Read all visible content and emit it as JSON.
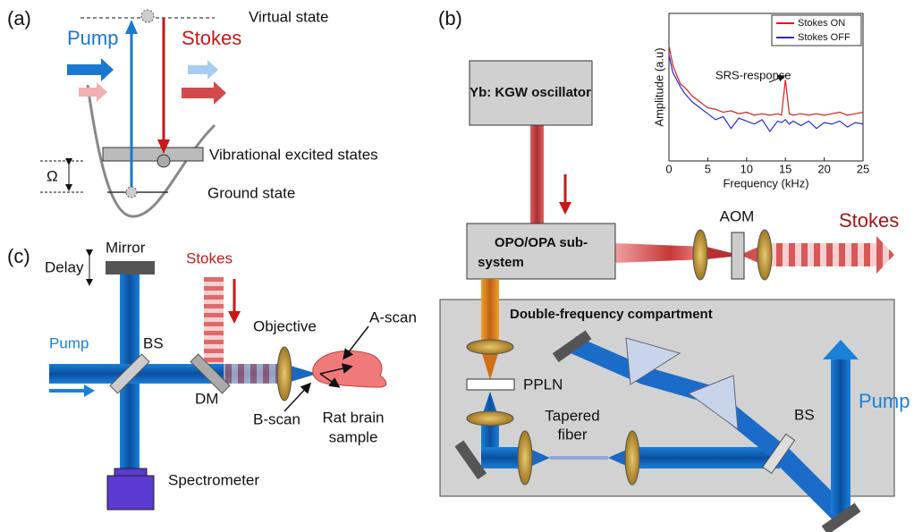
{
  "panels": {
    "a": {
      "label": "(a)",
      "virtual_state": "Virtual state",
      "pump": "Pump",
      "stokes": "Stokes",
      "vibrational": "Vibrational excited states",
      "ground": "Ground state",
      "omega": "Ω"
    },
    "b": {
      "label": "(b)",
      "oscillator": "Yb: KGW oscillator",
      "opo": [
        "OPO/OPA sub-",
        "system"
      ],
      "aom": "AOM",
      "stokes": "Stokes",
      "compartment": "Double-frequency compartment",
      "ppln": "PPLN",
      "tapered": [
        "Tapered",
        "fiber"
      ],
      "bs": "BS",
      "pump": "Pump"
    },
    "c": {
      "label": "(c)",
      "mirror": "Mirror",
      "delay": "Delay",
      "stokes": "Stokes",
      "pump": "Pump",
      "bs": "BS",
      "dm": "DM",
      "objective": "Objective",
      "ascan": "A-scan",
      "bscan": "B-scan",
      "sample": [
        "Rat brain",
        "sample"
      ],
      "spectrometer": "Spectrometer"
    }
  },
  "chart_data": {
    "type": "line",
    "xlabel": "Frequency  (kHz)",
    "ylabel": "Amplitude (a.u)",
    "annotation": "SRS-response",
    "x": [
      0,
      0.5,
      1,
      1.5,
      2,
      3,
      4,
      5,
      6,
      7,
      8,
      9,
      10,
      11,
      12,
      13,
      14,
      14.5,
      15,
      15.5,
      16,
      17,
      18,
      19,
      20,
      21,
      22,
      23,
      24,
      25
    ],
    "series": [
      {
        "name": "Stokes ON",
        "color": "#d42020",
        "values": [
          0.78,
          0.65,
          0.58,
          0.52,
          0.5,
          0.44,
          0.4,
          0.36,
          0.35,
          0.33,
          0.34,
          0.32,
          0.33,
          0.31,
          0.32,
          0.31,
          0.32,
          0.31,
          0.55,
          0.32,
          0.31,
          0.32,
          0.31,
          0.32,
          0.31,
          0.32,
          0.33,
          0.31,
          0.32,
          0.33
        ]
      },
      {
        "name": "Stokes OFF",
        "color": "#2a2ad8",
        "values": [
          0.72,
          0.6,
          0.55,
          0.5,
          0.46,
          0.4,
          0.36,
          0.32,
          0.28,
          0.3,
          0.22,
          0.29,
          0.27,
          0.25,
          0.28,
          0.2,
          0.27,
          0.26,
          0.28,
          0.25,
          0.27,
          0.24,
          0.27,
          0.22,
          0.26,
          0.25,
          0.27,
          0.23,
          0.26,
          0.25
        ]
      }
    ],
    "xlim": [
      0,
      25
    ],
    "xticks": [
      0,
      5,
      10,
      15,
      20,
      25
    ],
    "ylim": [
      0,
      1
    ],
    "legend": "upper right"
  }
}
